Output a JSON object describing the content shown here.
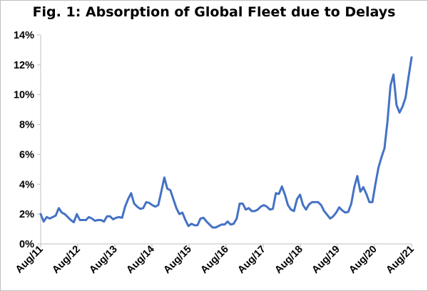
{
  "chart_data": {
    "type": "line",
    "title": "Fig. 1: Absorption of Global Fleet due to Delays",
    "xlabel": "",
    "ylabel": "",
    "ylim": [
      0,
      14
    ],
    "y_ticks": [
      "0%",
      "2%",
      "4%",
      "6%",
      "8%",
      "10%",
      "12%",
      "14%"
    ],
    "x_tick_labels": [
      "Aug/11",
      "Aug/12",
      "Aug/13",
      "Aug/14",
      "Aug/15",
      "Aug/16",
      "Aug/17",
      "Aug/18",
      "Aug/19",
      "Aug/20",
      "Aug/21"
    ],
    "grid": false,
    "legend": "none",
    "line_color": "#4472C4",
    "series": [
      {
        "values": [
          2.0,
          1.5,
          1.8,
          1.7,
          1.8,
          1.9,
          2.4,
          2.1,
          2.0,
          1.8,
          1.6,
          1.45,
          2.0,
          1.6,
          1.6,
          1.6,
          1.8,
          1.7,
          1.55,
          1.6,
          1.6,
          1.5,
          1.85,
          1.85,
          1.65,
          1.75,
          1.8,
          1.75,
          2.5,
          3.0,
          3.4,
          2.7,
          2.5,
          2.35,
          2.4,
          2.8,
          2.75,
          2.6,
          2.5,
          2.6,
          3.5,
          4.45,
          3.7,
          3.6,
          3.0,
          2.4,
          2.0,
          2.1,
          1.6,
          1.2,
          1.35,
          1.25,
          1.25,
          1.7,
          1.75,
          1.5,
          1.3,
          1.1,
          1.1,
          1.2,
          1.3,
          1.3,
          1.5,
          1.3,
          1.35,
          1.7,
          2.7,
          2.7,
          2.3,
          2.4,
          2.2,
          2.2,
          2.3,
          2.5,
          2.6,
          2.5,
          2.3,
          2.35,
          3.4,
          3.35,
          3.85,
          3.3,
          2.6,
          2.3,
          2.2,
          3.0,
          3.3,
          2.6,
          2.3,
          2.65,
          2.8,
          2.8,
          2.8,
          2.6,
          2.2,
          1.95,
          1.7,
          1.85,
          2.1,
          2.45,
          2.25,
          2.1,
          2.15,
          2.7,
          3.8,
          4.55,
          3.5,
          3.8,
          3.35,
          2.8,
          2.8,
          4.0,
          5.1,
          5.8,
          6.4,
          8.2,
          10.6,
          11.35,
          9.3,
          8.8,
          9.2,
          9.8,
          11.2,
          12.5
        ]
      }
    ]
  }
}
